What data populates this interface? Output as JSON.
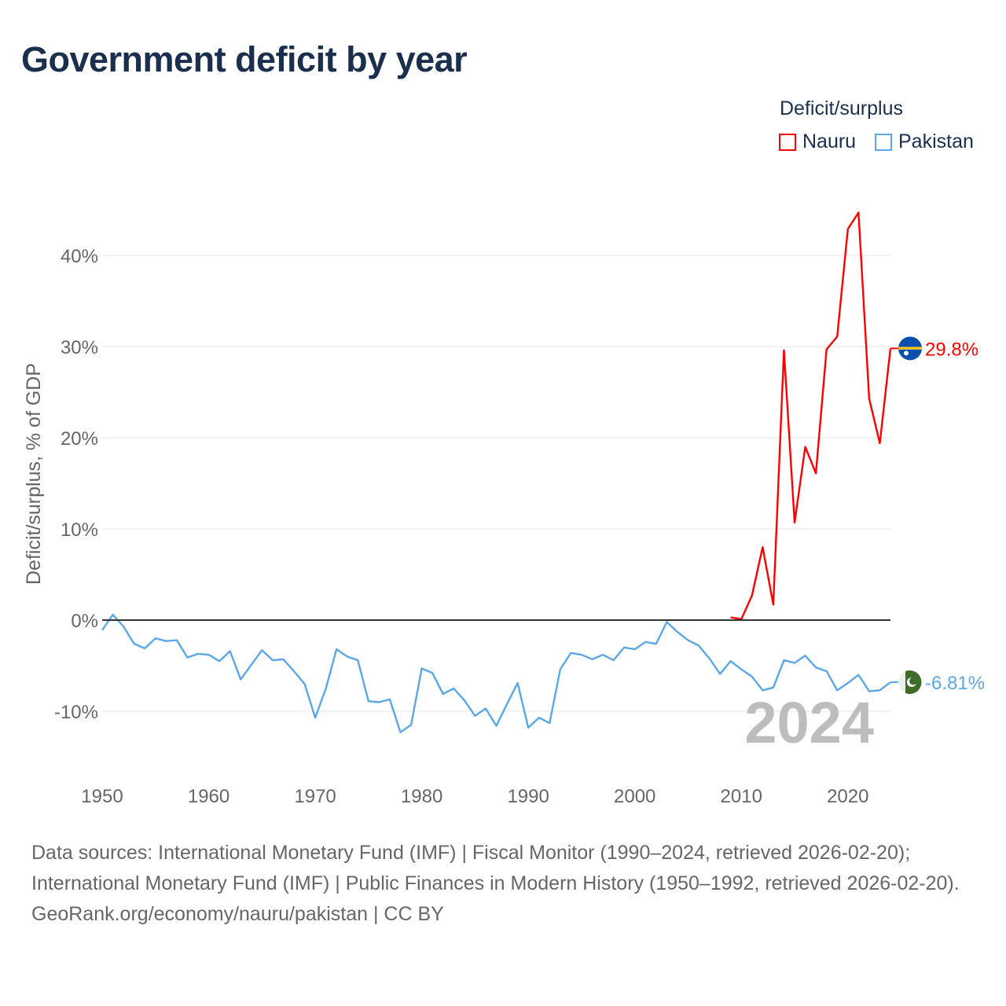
{
  "title": "Government deficit by year",
  "legend": {
    "title": "Deficit/surplus",
    "items": [
      {
        "name": "Nauru",
        "color": "#ff0000"
      },
      {
        "name": "Pakistan",
        "color": "#5aa7ea"
      }
    ]
  },
  "year_label": "2024",
  "footer": {
    "sources": "Data sources: International Monetary Fund (IMF) | Fiscal Monitor (1990–2024, retrieved 2026-02-20); International Monetary Fund (IMF) | Public Finances in Modern History (1950–1992, retrieved 2026-02-20).",
    "credit": "GeoRank.org/economy/nauru/pakistan | CC BY"
  },
  "chart_data": {
    "type": "line",
    "title": "Government deficit by year",
    "xlabel": "",
    "ylabel": "Deficit/surplus, % of GDP",
    "xlim": [
      1950,
      2024
    ],
    "ylim": [
      -15,
      45
    ],
    "xticks": [
      1950,
      1960,
      1970,
      1980,
      1990,
      2000,
      2010,
      2020
    ],
    "xtick_labels": [
      "1950",
      "1960",
      "1970",
      "1980",
      "1990",
      "2000",
      "2010",
      "2020"
    ],
    "yticks": [
      -10,
      0,
      10,
      20,
      30,
      40
    ],
    "ytick_labels": [
      "-10%",
      "0%",
      "10%",
      "20%",
      "30%",
      "40%"
    ],
    "grid": true,
    "legend_position": "top-right",
    "series": [
      {
        "name": "Nauru",
        "color": "#ff0000",
        "end_label": "29.8%",
        "flag": "nauru-flag",
        "x": [
          2009,
          2010,
          2011,
          2012,
          2013,
          2014,
          2015,
          2016,
          2017,
          2018,
          2019,
          2020,
          2021,
          2022,
          2023,
          2024
        ],
        "values": [
          0.3,
          0.1,
          2.7,
          8.0,
          1.7,
          29.6,
          10.7,
          19.0,
          16.1,
          29.7,
          31.1,
          42.9,
          44.7,
          24.3,
          19.4,
          29.8
        ]
      },
      {
        "name": "Pakistan",
        "color": "#5aa7ea",
        "end_label": "-6.81%",
        "flag": "pakistan-flag",
        "x": [
          1950,
          1951,
          1952,
          1953,
          1954,
          1955,
          1956,
          1957,
          1958,
          1959,
          1960,
          1961,
          1962,
          1963,
          1964,
          1965,
          1966,
          1967,
          1968,
          1969,
          1970,
          1971,
          1972,
          1973,
          1974,
          1975,
          1976,
          1977,
          1978,
          1979,
          1980,
          1981,
          1982,
          1983,
          1984,
          1985,
          1986,
          1987,
          1988,
          1989,
          1990,
          1991,
          1992,
          1993,
          1994,
          1995,
          1996,
          1997,
          1998,
          1999,
          2000,
          2001,
          2002,
          2003,
          2004,
          2005,
          2006,
          2007,
          2008,
          2009,
          2010,
          2011,
          2012,
          2013,
          2014,
          2015,
          2016,
          2017,
          2018,
          2019,
          2020,
          2021,
          2022,
          2023,
          2024
        ],
        "values": [
          -1.1,
          0.6,
          -0.7,
          -2.6,
          -3.1,
          -2.0,
          -2.3,
          -2.2,
          -4.1,
          -3.7,
          -3.8,
          -4.5,
          -3.4,
          -6.5,
          -4.9,
          -3.3,
          -4.4,
          -4.3,
          -5.6,
          -7.0,
          -10.7,
          -7.5,
          -3.2,
          -4.0,
          -4.4,
          -8.9,
          -9.0,
          -8.7,
          -12.3,
          -11.5,
          -5.3,
          -5.8,
          -8.1,
          -7.5,
          -8.8,
          -10.5,
          -9.7,
          -11.6,
          -9.2,
          -6.9,
          -11.8,
          -10.7,
          -11.3,
          -5.4,
          -3.6,
          -3.8,
          -4.3,
          -3.8,
          -4.4,
          -3.0,
          -3.2,
          -2.4,
          -2.6,
          -0.2,
          -1.3,
          -2.2,
          -2.8,
          -4.2,
          -5.9,
          -4.5,
          -5.4,
          -6.2,
          -7.7,
          -7.4,
          -4.4,
          -4.7,
          -3.9,
          -5.2,
          -5.6,
          -7.7,
          -6.9,
          -6.0,
          -7.8,
          -7.7,
          -6.81
        ]
      }
    ]
  }
}
